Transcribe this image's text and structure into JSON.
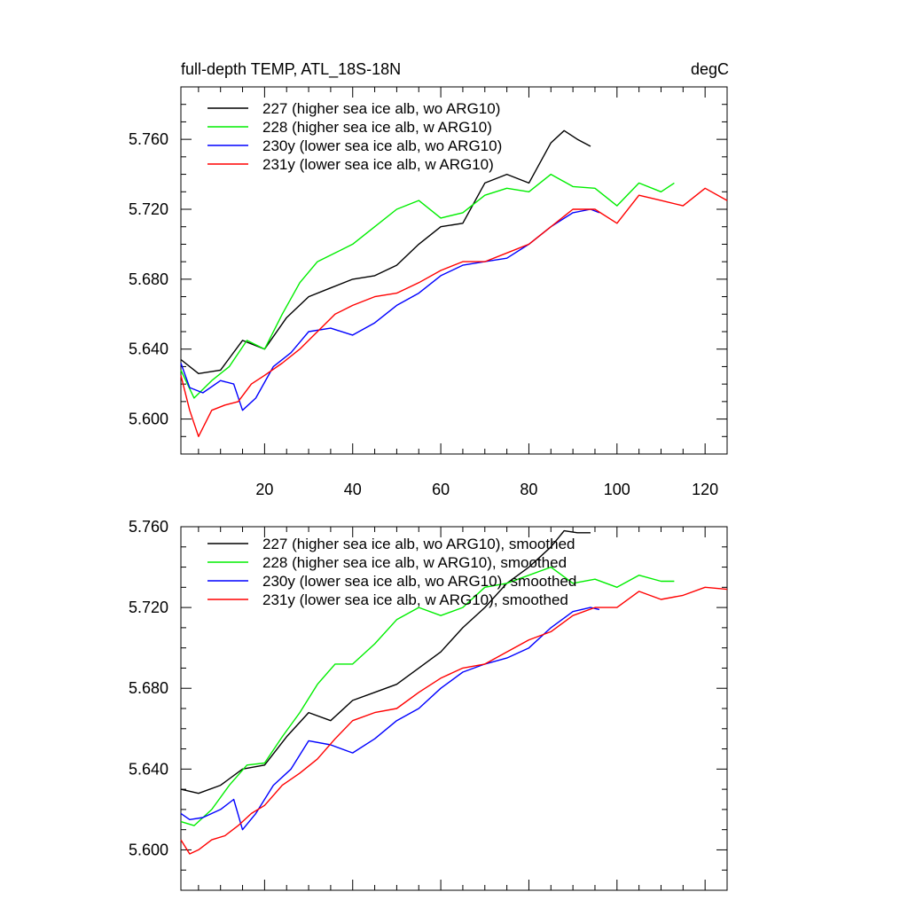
{
  "chart_data": [
    {
      "type": "line",
      "title": "full-depth TEMP, ATL_18S-18N",
      "units_label": "degC",
      "xlim": [
        1,
        125
      ],
      "ylim": [
        5.58,
        5.79
      ],
      "x_ticks": [
        20,
        40,
        60,
        80,
        100,
        120
      ],
      "x_tick_labels": [
        "20",
        "40",
        "60",
        "80",
        "100",
        "120"
      ],
      "y_ticks": [
        5.6,
        5.64,
        5.68,
        5.72,
        5.76
      ],
      "y_tick_labels": [
        "5.600",
        "5.640",
        "5.680",
        "5.720",
        "5.760"
      ],
      "series": [
        {
          "name": "227 (higher sea ice alb, wo ARG10)",
          "color": "#000000",
          "x": [
            1,
            5,
            10,
            15,
            20,
            25,
            30,
            35,
            40,
            45,
            50,
            55,
            60,
            65,
            70,
            75,
            80,
            85,
            88,
            91,
            94
          ],
          "y": [
            5.634,
            5.626,
            5.628,
            5.645,
            5.64,
            5.658,
            5.67,
            5.675,
            5.68,
            5.682,
            5.688,
            5.7,
            5.71,
            5.712,
            5.735,
            5.74,
            5.735,
            5.758,
            5.765,
            5.76,
            5.756
          ]
        },
        {
          "name": "228 (higher sea ice alb, w ARG10)",
          "color": "#00ee00",
          "x": [
            1,
            4,
            8,
            12,
            16,
            20,
            24,
            28,
            32,
            36,
            40,
            45,
            50,
            55,
            60,
            65,
            70,
            75,
            80,
            85,
            90,
            95,
            100,
            105,
            110,
            113
          ],
          "y": [
            5.628,
            5.612,
            5.622,
            5.63,
            5.645,
            5.64,
            5.66,
            5.678,
            5.69,
            5.695,
            5.7,
            5.71,
            5.72,
            5.725,
            5.715,
            5.718,
            5.728,
            5.732,
            5.73,
            5.74,
            5.733,
            5.732,
            5.722,
            5.735,
            5.73,
            5.735
          ]
        },
        {
          "name": "230y (lower sea ice alb, wo ARG10)",
          "color": "#0000ff",
          "x": [
            1,
            3,
            6,
            10,
            13,
            15,
            18,
            22,
            26,
            30,
            35,
            40,
            45,
            50,
            55,
            60,
            65,
            70,
            75,
            80,
            85,
            90,
            94,
            96
          ],
          "y": [
            5.632,
            5.618,
            5.615,
            5.622,
            5.62,
            5.605,
            5.612,
            5.63,
            5.638,
            5.65,
            5.652,
            5.648,
            5.655,
            5.665,
            5.672,
            5.682,
            5.688,
            5.69,
            5.692,
            5.7,
            5.71,
            5.718,
            5.72,
            5.718
          ]
        },
        {
          "name": "231y (lower sea ice alb, w ARG10)",
          "color": "#ff0000",
          "x": [
            1,
            3,
            5,
            8,
            11,
            14,
            17,
            20,
            24,
            28,
            32,
            36,
            40,
            45,
            50,
            55,
            60,
            65,
            70,
            75,
            80,
            85,
            90,
            95,
            100,
            105,
            110,
            115,
            120,
            125
          ],
          "y": [
            5.625,
            5.605,
            5.59,
            5.605,
            5.608,
            5.61,
            5.62,
            5.625,
            5.632,
            5.64,
            5.65,
            5.66,
            5.665,
            5.67,
            5.672,
            5.678,
            5.685,
            5.69,
            5.69,
            5.695,
            5.7,
            5.71,
            5.72,
            5.72,
            5.712,
            5.728,
            5.725,
            5.722,
            5.732,
            5.725
          ]
        }
      ],
      "legend_position": "top-left"
    },
    {
      "type": "line",
      "xlim": [
        1,
        125
      ],
      "ylim": [
        5.58,
        5.76
      ],
      "x_ticks": [
        20,
        40,
        60,
        80,
        100,
        120
      ],
      "y_ticks": [
        5.6,
        5.64,
        5.68,
        5.72,
        5.76
      ],
      "y_tick_labels": [
        "5.600",
        "5.640",
        "5.680",
        "5.720",
        "5.760"
      ],
      "series": [
        {
          "name": "227 (higher sea ice alb, wo ARG10), smoothed",
          "color": "#000000",
          "x": [
            1,
            5,
            10,
            15,
            20,
            25,
            30,
            35,
            40,
            45,
            50,
            55,
            60,
            65,
            70,
            75,
            80,
            85,
            88,
            91,
            94
          ],
          "y": [
            5.63,
            5.628,
            5.632,
            5.64,
            5.642,
            5.656,
            5.668,
            5.664,
            5.674,
            5.678,
            5.682,
            5.69,
            5.698,
            5.71,
            5.72,
            5.732,
            5.74,
            5.75,
            5.758,
            5.757,
            5.757
          ]
        },
        {
          "name": "228 (higher sea ice alb, w ARG10), smoothed",
          "color": "#00ee00",
          "x": [
            1,
            4,
            8,
            12,
            16,
            20,
            24,
            28,
            32,
            36,
            40,
            45,
            50,
            55,
            60,
            65,
            70,
            75,
            80,
            85,
            90,
            95,
            100,
            105,
            110,
            113
          ],
          "y": [
            5.614,
            5.612,
            5.62,
            5.632,
            5.642,
            5.643,
            5.656,
            5.668,
            5.682,
            5.692,
            5.692,
            5.702,
            5.714,
            5.72,
            5.716,
            5.72,
            5.73,
            5.732,
            5.736,
            5.74,
            5.732,
            5.734,
            5.73,
            5.736,
            5.733,
            5.733
          ]
        },
        {
          "name": "230y (lower sea ice alb, wo ARG10), smoothed",
          "color": "#0000ff",
          "x": [
            1,
            3,
            6,
            10,
            13,
            15,
            18,
            22,
            26,
            30,
            35,
            40,
            45,
            50,
            55,
            60,
            65,
            70,
            75,
            80,
            85,
            90,
            94,
            96
          ],
          "y": [
            5.618,
            5.615,
            5.616,
            5.62,
            5.625,
            5.61,
            5.618,
            5.632,
            5.64,
            5.654,
            5.652,
            5.648,
            5.655,
            5.664,
            5.67,
            5.68,
            5.688,
            5.692,
            5.695,
            5.7,
            5.71,
            5.718,
            5.72,
            5.719
          ]
        },
        {
          "name": "231y (lower sea ice alb, w ARG10), smoothed",
          "color": "#ff0000",
          "x": [
            1,
            3,
            5,
            8,
            11,
            14,
            17,
            20,
            24,
            28,
            32,
            36,
            40,
            45,
            50,
            55,
            60,
            65,
            70,
            75,
            80,
            85,
            90,
            95,
            100,
            105,
            110,
            115,
            120,
            125
          ],
          "y": [
            5.605,
            5.598,
            5.6,
            5.605,
            5.607,
            5.612,
            5.618,
            5.622,
            5.632,
            5.638,
            5.645,
            5.655,
            5.664,
            5.668,
            5.67,
            5.678,
            5.685,
            5.69,
            5.692,
            5.698,
            5.704,
            5.708,
            5.716,
            5.72,
            5.72,
            5.728,
            5.724,
            5.726,
            5.73,
            5.729
          ]
        }
      ],
      "legend_position": "top-left"
    }
  ]
}
